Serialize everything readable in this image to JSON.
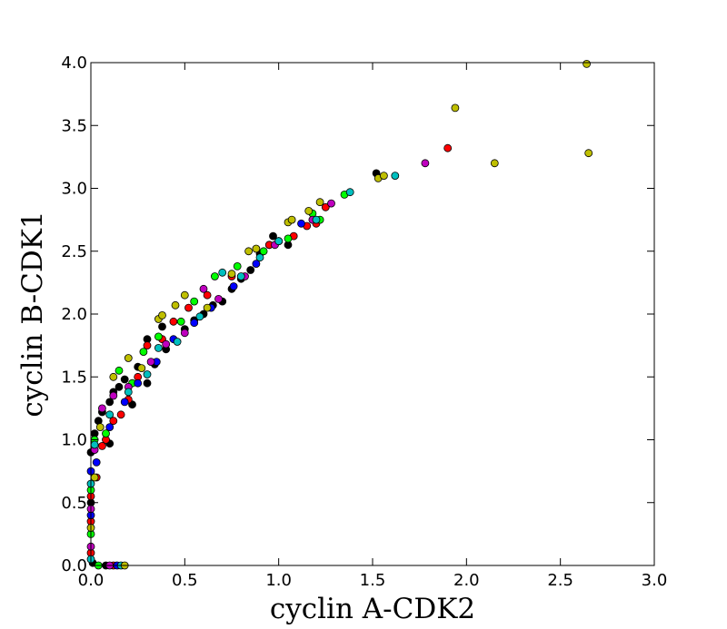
{
  "chart_data": {
    "type": "scatter",
    "title": "",
    "xlabel": "cyclin A-CDK2",
    "ylabel": "cyclin B-CDK1",
    "xlim": [
      0,
      3.0
    ],
    "ylim": [
      0,
      4.0
    ],
    "grid": false,
    "x_ticks": [
      0.0,
      0.5,
      1.0,
      1.5,
      2.0,
      2.5,
      3.0
    ],
    "y_ticks": [
      0.0,
      0.5,
      1.0,
      1.5,
      2.0,
      2.5,
      3.0,
      3.5,
      4.0
    ],
    "x_tick_labels": [
      "0.0",
      "0.5",
      "1.0",
      "1.5",
      "2.0",
      "2.5",
      "3.0"
    ],
    "y_tick_labels": [
      "0.0",
      "0.5",
      "1.0",
      "1.5",
      "2.0",
      "2.5",
      "3.0",
      "3.5",
      "4.0"
    ],
    "series": [
      {
        "color": "#000000",
        "points": [
          [
            0.01,
            0.02
          ],
          [
            0.0,
            0.5
          ],
          [
            0.0,
            0.9
          ],
          [
            0.02,
            1.05
          ],
          [
            0.04,
            1.15
          ],
          [
            0.06,
            1.22
          ],
          [
            0.1,
            1.3
          ],
          [
            0.1,
            0.97
          ],
          [
            0.12,
            1.38
          ],
          [
            0.15,
            1.42
          ],
          [
            0.18,
            1.48
          ],
          [
            0.22,
            1.28
          ],
          [
            0.25,
            1.58
          ],
          [
            0.3,
            1.45
          ],
          [
            0.3,
            1.8
          ],
          [
            0.34,
            1.6
          ],
          [
            0.38,
            1.9
          ],
          [
            0.4,
            1.72
          ],
          [
            0.5,
            1.88
          ],
          [
            0.55,
            1.95
          ],
          [
            0.6,
            2.0
          ],
          [
            0.65,
            2.07
          ],
          [
            0.7,
            2.1
          ],
          [
            0.75,
            2.2
          ],
          [
            0.8,
            2.28
          ],
          [
            0.85,
            2.35
          ],
          [
            0.9,
            2.48
          ],
          [
            0.95,
            2.55
          ],
          [
            0.97,
            2.62
          ],
          [
            1.0,
            2.58
          ],
          [
            1.05,
            2.55
          ],
          [
            1.52,
            3.12
          ],
          [
            0.08,
            0.0
          ]
        ]
      },
      {
        "color": "#ff0000",
        "points": [
          [
            0.0,
            0.1
          ],
          [
            0.0,
            0.35
          ],
          [
            0.0,
            0.55
          ],
          [
            0.03,
            0.7
          ],
          [
            0.06,
            0.95
          ],
          [
            0.08,
            1.0
          ],
          [
            0.12,
            1.15
          ],
          [
            0.16,
            1.2
          ],
          [
            0.2,
            1.32
          ],
          [
            0.25,
            1.5
          ],
          [
            0.3,
            1.75
          ],
          [
            0.38,
            1.8
          ],
          [
            0.44,
            1.94
          ],
          [
            0.52,
            2.05
          ],
          [
            0.62,
            2.15
          ],
          [
            0.75,
            2.3
          ],
          [
            0.95,
            2.55
          ],
          [
            1.08,
            2.62
          ],
          [
            1.15,
            2.7
          ],
          [
            1.2,
            2.72
          ],
          [
            1.25,
            2.85
          ],
          [
            1.9,
            3.32
          ],
          [
            0.12,
            0.0
          ]
        ]
      },
      {
        "color": "#00ff00",
        "points": [
          [
            0.0,
            0.25
          ],
          [
            0.0,
            0.6
          ],
          [
            0.02,
            1.0
          ],
          [
            0.08,
            1.05
          ],
          [
            0.15,
            1.55
          ],
          [
            0.22,
            1.45
          ],
          [
            0.28,
            1.7
          ],
          [
            0.36,
            1.82
          ],
          [
            0.48,
            1.94
          ],
          [
            0.55,
            2.1
          ],
          [
            0.66,
            2.3
          ],
          [
            0.78,
            2.38
          ],
          [
            0.92,
            2.5
          ],
          [
            1.05,
            2.6
          ],
          [
            1.18,
            2.8
          ],
          [
            1.22,
            2.75
          ],
          [
            1.35,
            2.95
          ],
          [
            0.04,
            0.0
          ]
        ]
      },
      {
        "color": "#0000ff",
        "points": [
          [
            0.0,
            0.4
          ],
          [
            0.0,
            0.75
          ],
          [
            0.03,
            0.82
          ],
          [
            0.1,
            1.1
          ],
          [
            0.18,
            1.3
          ],
          [
            0.25,
            1.45
          ],
          [
            0.35,
            1.62
          ],
          [
            0.44,
            1.8
          ],
          [
            0.55,
            1.93
          ],
          [
            0.64,
            2.05
          ],
          [
            0.76,
            2.22
          ],
          [
            0.88,
            2.4
          ],
          [
            1.0,
            2.58
          ],
          [
            1.12,
            2.72
          ],
          [
            0.14,
            0.0
          ]
        ]
      },
      {
        "color": "#bf00bf",
        "points": [
          [
            0.0,
            0.15
          ],
          [
            0.0,
            0.45
          ],
          [
            0.02,
            0.92
          ],
          [
            0.06,
            1.25
          ],
          [
            0.12,
            1.35
          ],
          [
            0.2,
            1.42
          ],
          [
            0.32,
            1.62
          ],
          [
            0.4,
            1.76
          ],
          [
            0.5,
            1.85
          ],
          [
            0.6,
            2.2
          ],
          [
            0.68,
            2.12
          ],
          [
            0.82,
            2.3
          ],
          [
            0.98,
            2.55
          ],
          [
            1.18,
            2.75
          ],
          [
            1.28,
            2.88
          ],
          [
            1.78,
            3.2
          ],
          [
            0.1,
            0.0
          ]
        ]
      },
      {
        "color": "#00bfbf",
        "points": [
          [
            0.0,
            0.05
          ],
          [
            0.0,
            0.65
          ],
          [
            0.02,
            0.96
          ],
          [
            0.1,
            1.2
          ],
          [
            0.2,
            1.38
          ],
          [
            0.3,
            1.52
          ],
          [
            0.36,
            1.73
          ],
          [
            0.46,
            1.78
          ],
          [
            0.58,
            1.98
          ],
          [
            0.7,
            2.33
          ],
          [
            0.8,
            2.3
          ],
          [
            0.9,
            2.45
          ],
          [
            1.0,
            2.58
          ],
          [
            1.2,
            2.75
          ],
          [
            1.38,
            2.97
          ],
          [
            1.62,
            3.1
          ],
          [
            0.16,
            0.0
          ]
        ]
      },
      {
        "color": "#bfbf00",
        "points": [
          [
            0.0,
            0.3
          ],
          [
            0.02,
            0.7
          ],
          [
            0.05,
            1.1
          ],
          [
            0.12,
            1.5
          ],
          [
            0.2,
            1.65
          ],
          [
            0.27,
            1.57
          ],
          [
            0.36,
            1.96
          ],
          [
            0.38,
            1.99
          ],
          [
            0.45,
            2.07
          ],
          [
            0.5,
            2.15
          ],
          [
            0.62,
            2.05
          ],
          [
            0.75,
            2.32
          ],
          [
            0.84,
            2.5
          ],
          [
            0.88,
            2.52
          ],
          [
            1.05,
            2.73
          ],
          [
            1.07,
            2.75
          ],
          [
            1.16,
            2.82
          ],
          [
            1.22,
            2.89
          ],
          [
            1.53,
            3.08
          ],
          [
            1.56,
            3.1
          ],
          [
            1.94,
            3.64
          ],
          [
            2.15,
            3.2
          ],
          [
            2.64,
            3.99
          ],
          [
            2.65,
            3.28
          ],
          [
            0.18,
            0.0
          ]
        ]
      }
    ]
  }
}
